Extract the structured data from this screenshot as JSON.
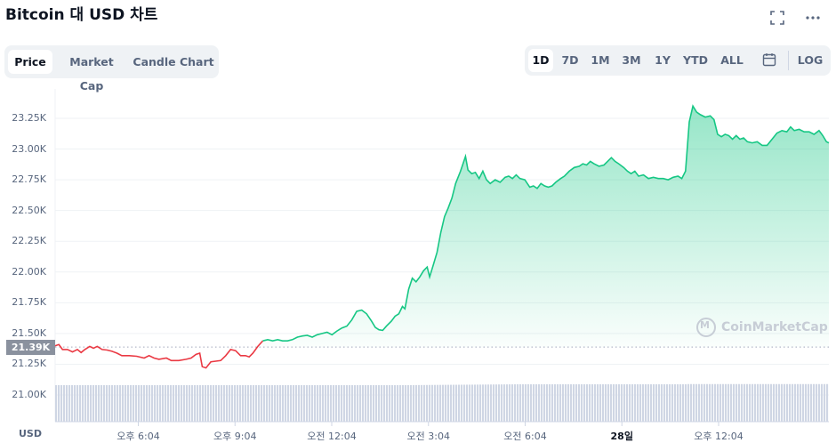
{
  "header": {
    "title": "Bitcoin 대 USD 차트",
    "fullscreen_icon": "expand-icon",
    "more_icon": "more-horizontal-icon"
  },
  "chart_tabs": [
    {
      "label": "Price",
      "active": true
    },
    {
      "label": "Market Cap",
      "active": false
    },
    {
      "label": "Candle Chart",
      "active": false
    }
  ],
  "ranges": [
    {
      "label": "1D",
      "active": true
    },
    {
      "label": "7D",
      "active": false
    },
    {
      "label": "1M",
      "active": false
    },
    {
      "label": "3M",
      "active": false
    },
    {
      "label": "1Y",
      "active": false
    },
    {
      "label": "YTD",
      "active": false
    },
    {
      "label": "ALL",
      "active": false
    }
  ],
  "calendar_icon": "calendar-icon",
  "log_label": "LOG",
  "currency_label": "USD",
  "current_price_label": "21.39K",
  "watermark": "CoinMarketCap",
  "colors": {
    "up": "#16c784",
    "down": "#ea3943",
    "volume": "#cfd6e4"
  },
  "chart_data": {
    "type": "line",
    "title": "Bitcoin 대 USD 차트",
    "ylabel": "USD",
    "yticks": [
      "23.25K",
      "23.00K",
      "22.75K",
      "22.50K",
      "22.25K",
      "22.00K",
      "21.75K",
      "21.50K",
      "21.25K",
      "21.00K"
    ],
    "ytick_values": [
      23250,
      23000,
      22750,
      22500,
      22250,
      22000,
      21750,
      21500,
      21250,
      21000
    ],
    "xticks": [
      {
        "label": "오후 6:04",
        "bold": false
      },
      {
        "label": "오후 9:04",
        "bold": false
      },
      {
        "label": "오전 12:04",
        "bold": false
      },
      {
        "label": "오전 3:04",
        "bold": false
      },
      {
        "label": "오전 6:04",
        "bold": false
      },
      {
        "label": "28일",
        "bold": true
      },
      {
        "label": "오후 12:04",
        "bold": false
      }
    ],
    "x_tick_hours": [
      2,
      5,
      8,
      11,
      14,
      17,
      20
    ],
    "x_range_hours": [
      0,
      24
    ],
    "ylim": [
      20900,
      23380
    ],
    "baseline": 21390,
    "series": [
      {
        "points": [
          [
            0,
            21400
          ],
          [
            0.15,
            21410
          ],
          [
            0.3,
            21370
          ],
          [
            0.5,
            21370
          ],
          [
            0.7,
            21350
          ],
          [
            0.9,
            21370
          ],
          [
            1.05,
            21345
          ],
          [
            1.2,
            21370
          ],
          [
            1.4,
            21395
          ],
          [
            1.55,
            21380
          ],
          [
            1.7,
            21395
          ],
          [
            1.9,
            21370
          ],
          [
            2.1,
            21365
          ],
          [
            2.3,
            21355
          ],
          [
            2.5,
            21340
          ],
          [
            2.7,
            21320
          ],
          [
            3.0,
            21320
          ],
          [
            3.3,
            21315
          ],
          [
            3.6,
            21300
          ],
          [
            3.8,
            21320
          ],
          [
            4.0,
            21300
          ],
          [
            4.2,
            21290
          ],
          [
            4.5,
            21300
          ],
          [
            4.7,
            21280
          ],
          [
            5.0,
            21280
          ],
          [
            5.3,
            21290
          ],
          [
            5.5,
            21300
          ],
          [
            5.7,
            21330
          ],
          [
            5.85,
            21340
          ],
          [
            5.95,
            21230
          ],
          [
            6.1,
            21220
          ],
          [
            6.3,
            21270
          ],
          [
            6.5,
            21275
          ],
          [
            6.7,
            21280
          ],
          [
            6.9,
            21320
          ],
          [
            7.1,
            21370
          ],
          [
            7.3,
            21360
          ],
          [
            7.5,
            21320
          ],
          [
            7.7,
            21320
          ],
          [
            7.85,
            21310
          ],
          [
            8.0,
            21340
          ],
          [
            8.2,
            21395
          ],
          [
            8.4,
            21440
          ],
          [
            8.6,
            21450
          ],
          [
            8.8,
            21440
          ],
          [
            9.0,
            21450
          ],
          [
            9.2,
            21440
          ],
          [
            9.4,
            21440
          ],
          [
            9.6,
            21450
          ],
          [
            9.8,
            21470
          ],
          [
            10.0,
            21480
          ],
          [
            10.2,
            21485
          ],
          [
            10.4,
            21470
          ],
          [
            10.6,
            21490
          ],
          [
            10.8,
            21500
          ],
          [
            11.0,
            21510
          ],
          [
            11.2,
            21490
          ],
          [
            11.4,
            21520
          ],
          [
            11.6,
            21545
          ],
          [
            11.8,
            21560
          ],
          [
            12.0,
            21610
          ],
          [
            12.2,
            21680
          ],
          [
            12.4,
            21690
          ],
          [
            12.6,
            21660
          ],
          [
            12.8,
            21600
          ],
          [
            12.95,
            21550
          ],
          [
            13.1,
            21530
          ],
          [
            13.25,
            21525
          ],
          [
            13.4,
            21560
          ],
          [
            13.6,
            21600
          ],
          [
            13.75,
            21640
          ],
          [
            13.9,
            21660
          ],
          [
            14.05,
            21720
          ],
          [
            14.15,
            21700
          ],
          [
            14.3,
            21860
          ],
          [
            14.45,
            21950
          ],
          [
            14.6,
            21920
          ],
          [
            14.75,
            21960
          ],
          [
            14.9,
            22010
          ],
          [
            15.05,
            22040
          ],
          [
            15.15,
            21960
          ],
          [
            15.3,
            22060
          ],
          [
            15.45,
            22160
          ],
          [
            15.6,
            22320
          ],
          [
            15.75,
            22450
          ],
          [
            15.9,
            22520
          ],
          [
            16.05,
            22600
          ],
          [
            16.2,
            22720
          ],
          [
            16.4,
            22820
          ],
          [
            16.5,
            22880
          ],
          [
            16.6,
            22940
          ],
          [
            16.7,
            22830
          ],
          [
            16.85,
            22800
          ],
          [
            17.0,
            22810
          ],
          [
            17.15,
            22760
          ],
          [
            17.3,
            22820
          ],
          [
            17.45,
            22750
          ],
          [
            17.6,
            22720
          ],
          [
            17.8,
            22750
          ],
          [
            18.0,
            22730
          ],
          [
            18.2,
            22770
          ],
          [
            18.35,
            22780
          ],
          [
            18.5,
            22760
          ],
          [
            18.65,
            22790
          ],
          [
            18.8,
            22760
          ],
          [
            19.0,
            22750
          ],
          [
            19.2,
            22690
          ],
          [
            19.35,
            22700
          ],
          [
            19.5,
            22680
          ],
          [
            19.65,
            22720
          ],
          [
            19.8,
            22700
          ],
          [
            19.95,
            22690
          ],
          [
            20.1,
            22700
          ],
          [
            20.25,
            22730
          ],
          [
            20.45,
            22760
          ],
          [
            20.6,
            22780
          ],
          [
            20.8,
            22820
          ],
          [
            21.0,
            22850
          ],
          [
            21.2,
            22860
          ],
          [
            21.35,
            22880
          ],
          [
            21.5,
            22870
          ],
          [
            21.65,
            22900
          ],
          [
            21.8,
            22880
          ],
          [
            22.0,
            22860
          ],
          [
            22.2,
            22870
          ],
          [
            22.35,
            22900
          ],
          [
            22.5,
            22930
          ],
          [
            22.65,
            22900
          ],
          [
            22.8,
            22880
          ],
          [
            23.0,
            22850
          ],
          [
            23.15,
            22820
          ],
          [
            23.3,
            22800
          ],
          [
            23.45,
            22820
          ],
          [
            23.6,
            22780
          ],
          [
            23.8,
            22790
          ],
          [
            24.0,
            22760
          ],
          [
            24.2,
            22770
          ],
          [
            24.4,
            22760
          ],
          [
            24.6,
            22760
          ],
          [
            24.8,
            22750
          ],
          [
            25.0,
            22770
          ],
          [
            25.2,
            22780
          ],
          [
            25.35,
            22760
          ],
          [
            25.5,
            22820
          ],
          [
            25.65,
            23220
          ],
          [
            25.8,
            23350
          ],
          [
            25.95,
            23300
          ],
          [
            26.1,
            23280
          ],
          [
            26.3,
            23260
          ],
          [
            26.5,
            23270
          ],
          [
            26.65,
            23240
          ],
          [
            26.8,
            23120
          ],
          [
            26.95,
            23100
          ],
          [
            27.1,
            23120
          ],
          [
            27.25,
            23110
          ],
          [
            27.4,
            23080
          ],
          [
            27.55,
            23110
          ],
          [
            27.7,
            23080
          ],
          [
            27.85,
            23090
          ],
          [
            28.0,
            23060
          ],
          [
            28.2,
            23050
          ],
          [
            28.4,
            23060
          ],
          [
            28.6,
            23030
          ],
          [
            28.8,
            23030
          ],
          [
            29.0,
            23080
          ],
          [
            29.2,
            23130
          ],
          [
            29.4,
            23150
          ],
          [
            29.6,
            23140
          ],
          [
            29.75,
            23180
          ],
          [
            29.9,
            23150
          ],
          [
            30.1,
            23160
          ],
          [
            30.3,
            23140
          ],
          [
            30.5,
            23140
          ],
          [
            30.7,
            23120
          ],
          [
            30.9,
            23150
          ],
          [
            31.05,
            23110
          ],
          [
            31.2,
            23060
          ],
          [
            31.3,
            23050
          ]
        ]
      }
    ],
    "volume_start": 0.77,
    "volume_end": 0.81
  }
}
